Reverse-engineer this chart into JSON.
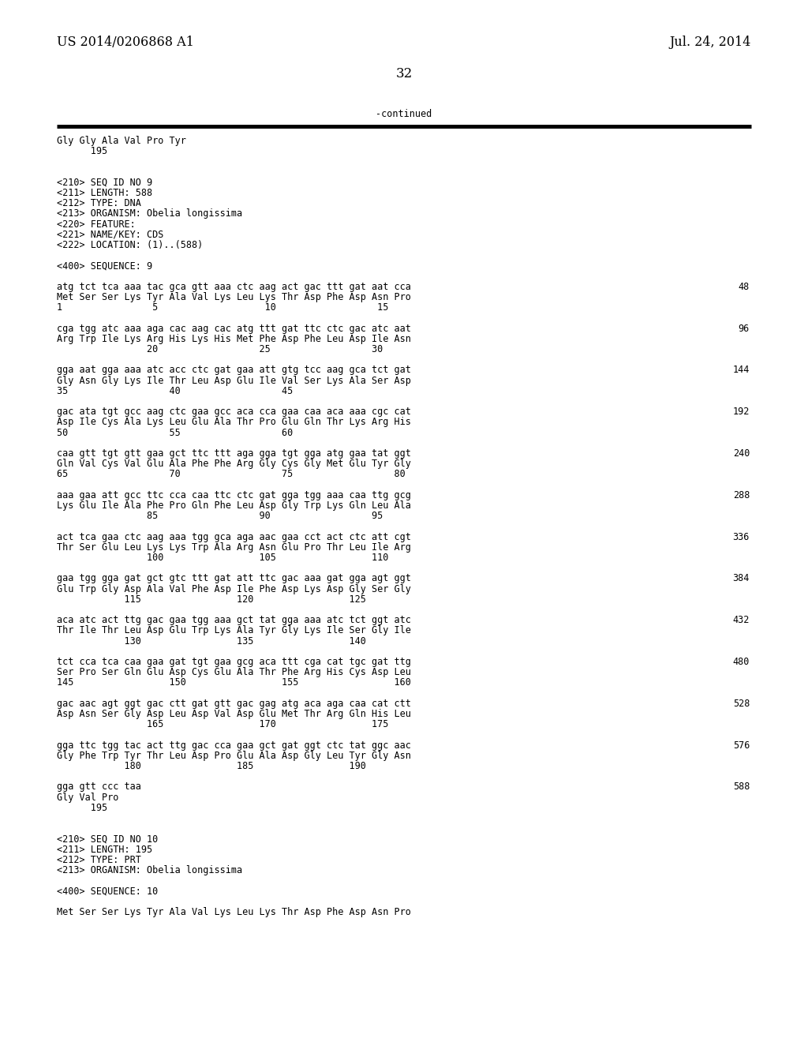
{
  "background_color": "#ffffff",
  "header_left": "US 2014/0206868 A1",
  "header_right": "Jul. 24, 2014",
  "page_number": "32",
  "continued_text": "-continued",
  "font_size_header": 11.5,
  "font_size_body": 8.5,
  "font_size_page_num": 12,
  "body_lines": [
    [
      "Gly Gly Ala Val Pro Tyr",
      ""
    ],
    [
      "      195",
      ""
    ],
    [
      "",
      ""
    ],
    [
      "",
      ""
    ],
    [
      "<210> SEQ ID NO 9",
      ""
    ],
    [
      "<211> LENGTH: 588",
      ""
    ],
    [
      "<212> TYPE: DNA",
      ""
    ],
    [
      "<213> ORGANISM: Obelia longissima",
      ""
    ],
    [
      "<220> FEATURE:",
      ""
    ],
    [
      "<221> NAME/KEY: CDS",
      ""
    ],
    [
      "<222> LOCATION: (1)..(588)",
      ""
    ],
    [
      "",
      ""
    ],
    [
      "<400> SEQUENCE: 9",
      ""
    ],
    [
      "",
      ""
    ],
    [
      "atg tct tca aaa tac gca gtt aaa ctc aag act gac ttt gat aat cca",
      "48"
    ],
    [
      "Met Ser Ser Lys Tyr Ala Val Lys Leu Lys Thr Asp Phe Asp Asn Pro",
      ""
    ],
    [
      "1                5                   10                  15",
      ""
    ],
    [
      "",
      ""
    ],
    [
      "cga tgg atc aaa aga cac aag cac atg ttt gat ttc ctc gac atc aat",
      "96"
    ],
    [
      "Arg Trp Ile Lys Arg His Lys His Met Phe Asp Phe Leu Asp Ile Asn",
      ""
    ],
    [
      "                20                  25                  30",
      ""
    ],
    [
      "",
      ""
    ],
    [
      "gga aat gga aaa atc acc ctc gat gaa att gtg tcc aag gca tct gat",
      "144"
    ],
    [
      "Gly Asn Gly Lys Ile Thr Leu Asp Glu Ile Val Ser Lys Ala Ser Asp",
      ""
    ],
    [
      "35                  40                  45",
      ""
    ],
    [
      "",
      ""
    ],
    [
      "gac ata tgt gcc aag ctc gaa gcc aca cca gaa caa aca aaa cgc cat",
      "192"
    ],
    [
      "Asp Ile Cys Ala Lys Leu Glu Ala Thr Pro Glu Gln Thr Lys Arg His",
      ""
    ],
    [
      "50                  55                  60",
      ""
    ],
    [
      "",
      ""
    ],
    [
      "caa gtt tgt gtt gaa gct ttc ttt aga gga tgt gga atg gaa tat ggt",
      "240"
    ],
    [
      "Gln Val Cys Val Glu Ala Phe Phe Arg Gly Cys Gly Met Glu Tyr Gly",
      ""
    ],
    [
      "65                  70                  75                  80",
      ""
    ],
    [
      "",
      ""
    ],
    [
      "aaa gaa att gcc ttc cca caa ttc ctc gat gga tgg aaa caa ttg gcg",
      "288"
    ],
    [
      "Lys Glu Ile Ala Phe Pro Gln Phe Leu Asp Gly Trp Lys Gln Leu Ala",
      ""
    ],
    [
      "                85                  90                  95",
      ""
    ],
    [
      "",
      ""
    ],
    [
      "act tca gaa ctc aag aaa tgg gca aga aac gaa cct act ctc att cgt",
      "336"
    ],
    [
      "Thr Ser Glu Leu Lys Lys Trp Ala Arg Asn Glu Pro Thr Leu Ile Arg",
      ""
    ],
    [
      "                100                 105                 110",
      ""
    ],
    [
      "",
      ""
    ],
    [
      "gaa tgg gga gat gct gtc ttt gat att ttc gac aaa gat gga agt ggt",
      "384"
    ],
    [
      "Glu Trp Gly Asp Ala Val Phe Asp Ile Phe Asp Lys Asp Gly Ser Gly",
      ""
    ],
    [
      "            115                 120                 125",
      ""
    ],
    [
      "",
      ""
    ],
    [
      "aca atc act ttg gac gaa tgg aaa gct tat gga aaa atc tct ggt atc",
      "432"
    ],
    [
      "Thr Ile Thr Leu Asp Glu Trp Lys Ala Tyr Gly Lys Ile Ser Gly Ile",
      ""
    ],
    [
      "            130                 135                 140",
      ""
    ],
    [
      "",
      ""
    ],
    [
      "tct cca tca caa gaa gat tgt gaa gcg aca ttt cga cat tgc gat ttg",
      "480"
    ],
    [
      "Ser Pro Ser Gln Glu Asp Cys Glu Ala Thr Phe Arg His Cys Asp Leu",
      ""
    ],
    [
      "145                 150                 155                 160",
      ""
    ],
    [
      "",
      ""
    ],
    [
      "gac aac agt ggt gac ctt gat gtt gac gag atg aca aga caa cat ctt",
      "528"
    ],
    [
      "Asp Asn Ser Gly Asp Leu Asp Val Asp Glu Met Thr Arg Gln His Leu",
      ""
    ],
    [
      "                165                 170                 175",
      ""
    ],
    [
      "",
      ""
    ],
    [
      "gga ttc tgg tac act ttg gac cca gaa gct gat ggt ctc tat ggc aac",
      "576"
    ],
    [
      "Gly Phe Trp Tyr Thr Leu Asp Pro Glu Ala Asp Gly Leu Tyr Gly Asn",
      ""
    ],
    [
      "            180                 185                 190",
      ""
    ],
    [
      "",
      ""
    ],
    [
      "gga gtt ccc taa",
      "588"
    ],
    [
      "Gly Val Pro",
      ""
    ],
    [
      "      195",
      ""
    ],
    [
      "",
      ""
    ],
    [
      "",
      ""
    ],
    [
      "<210> SEQ ID NO 10",
      ""
    ],
    [
      "<211> LENGTH: 195",
      ""
    ],
    [
      "<212> TYPE: PRT",
      ""
    ],
    [
      "<213> ORGANISM: Obelia longissima",
      ""
    ],
    [
      "",
      ""
    ],
    [
      "<400> SEQUENCE: 10",
      ""
    ],
    [
      "",
      ""
    ],
    [
      "Met Ser Ser Lys Tyr Ala Val Lys Leu Lys Thr Asp Phe Asp Asn Pro",
      ""
    ]
  ]
}
